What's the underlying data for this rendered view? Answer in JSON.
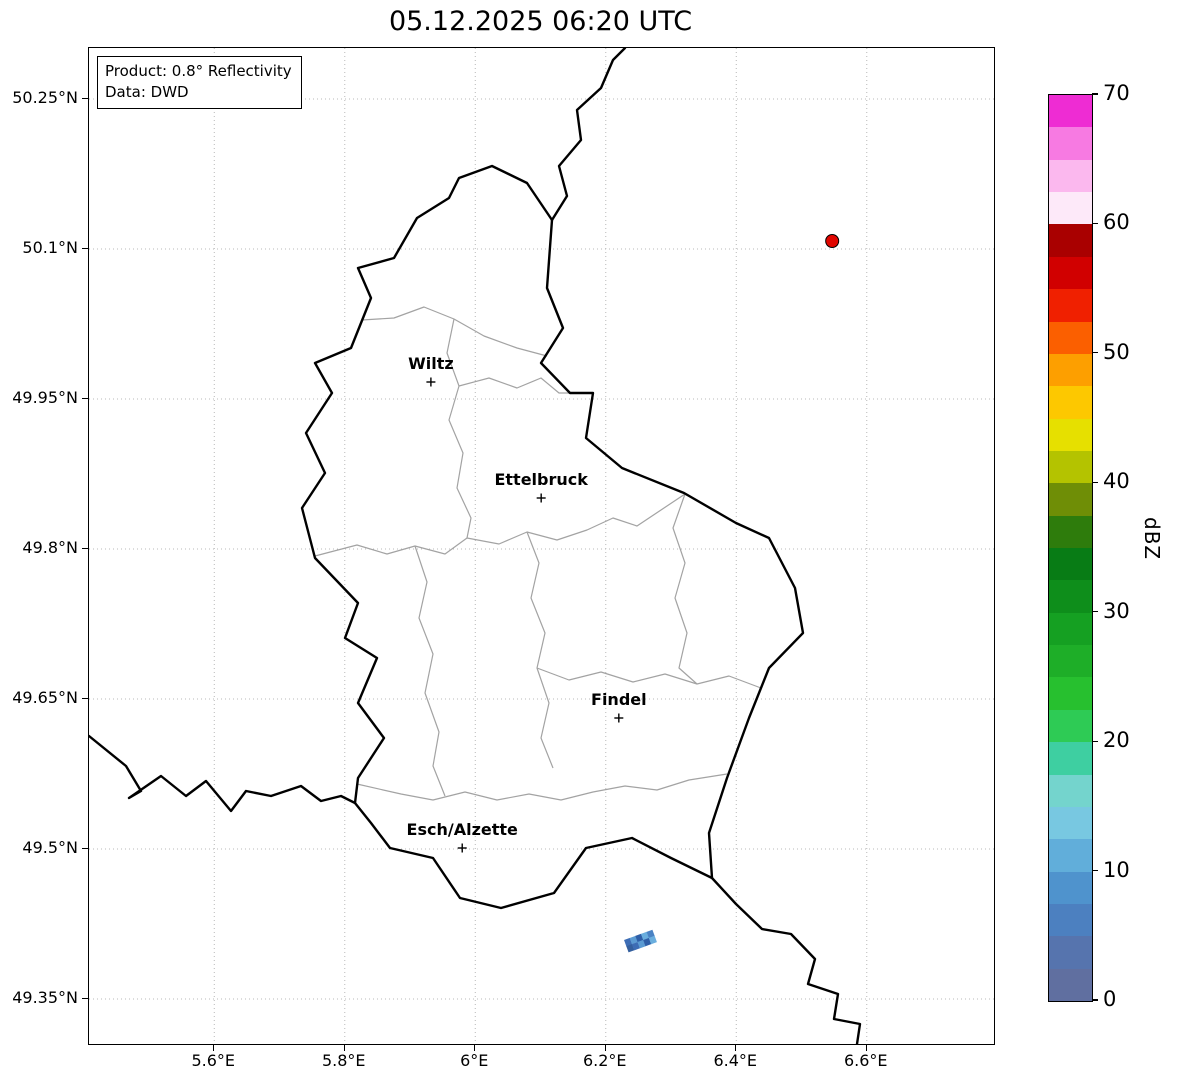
{
  "title": "05.12.2025 06:20 UTC",
  "info_box": {
    "product": "Product: 0.8° Reflectivity",
    "data_source": "Data: DWD"
  },
  "axes": {
    "lon_min": 5.408,
    "lon_max": 6.795,
    "lat_min": 49.305,
    "lat_max": 50.301,
    "x_ticks": [
      {
        "lon": 5.6,
        "label": "5.6°E"
      },
      {
        "lon": 5.8,
        "label": "5.8°E"
      },
      {
        "lon": 6.0,
        "label": "6°E"
      },
      {
        "lon": 6.2,
        "label": "6.2°E"
      },
      {
        "lon": 6.4,
        "label": "6.4°E"
      },
      {
        "lon": 6.6,
        "label": "6.6°E"
      }
    ],
    "y_ticks": [
      {
        "lat": 50.25,
        "label": "50.25°N"
      },
      {
        "lat": 50.1,
        "label": "50.1°N"
      },
      {
        "lat": 49.95,
        "label": "49.95°N"
      },
      {
        "lat": 49.8,
        "label": "49.8°N"
      },
      {
        "lat": 49.65,
        "label": "49.65°N"
      },
      {
        "lat": 49.5,
        "label": "49.5°N"
      },
      {
        "lat": 49.35,
        "label": "49.35°N"
      }
    ]
  },
  "cities": [
    {
      "name": "Wiltz",
      "lon": 5.932,
      "lat": 49.967
    },
    {
      "name": "Ettelbruck",
      "lon": 6.101,
      "lat": 49.851
    },
    {
      "name": "Findel",
      "lon": 6.22,
      "lat": 49.631
    },
    {
      "name": "Esch/Alzette",
      "lon": 5.98,
      "lat": 49.501
    }
  ],
  "radar_site": {
    "lon": 6.547,
    "lat": 50.108,
    "color": "#e10600"
  },
  "echo": {
    "lon": 6.253,
    "lat": 49.408,
    "rotation_deg": -20,
    "colors": [
      "#3d6db5",
      "#5b9bd3",
      "#2f5fa8",
      "#6aaede",
      "#4a82c4",
      "#345f9e"
    ]
  },
  "colorbar": {
    "label": "dBZ",
    "min": 0,
    "max": 70,
    "ticks": [
      0,
      10,
      20,
      30,
      40,
      50,
      60,
      70
    ],
    "colors_bottom_to_top": [
      "#606fa0",
      "#5674ae",
      "#4c80c0",
      "#4f93cd",
      "#61aeda",
      "#78c8e1",
      "#74d4cd",
      "#3ecfa1",
      "#2ecb55",
      "#27c02f",
      "#1eae28",
      "#15a022",
      "#0e8e1b",
      "#087c15",
      "#2e7c0c",
      "#6f8e06",
      "#b4c300",
      "#e6e000",
      "#fdc800",
      "#fd9f00",
      "#fb5f00",
      "#f02000",
      "#d10000",
      "#a90000",
      "#fde9f9",
      "#fbb8ee",
      "#f77ae2",
      "#ee2cd3"
    ]
  },
  "chart_data": {
    "type": "map",
    "title": "05.12.2025 06:20 UTC",
    "product": "0.8° Reflectivity",
    "source": "DWD",
    "extent": {
      "lon": [
        5.41,
        6.79
      ],
      "lat": [
        49.31,
        50.3
      ]
    },
    "colorbar": {
      "label": "dBZ",
      "range": [
        0,
        70
      ],
      "ticks": [
        0,
        10,
        20,
        30,
        40,
        50,
        60,
        70
      ]
    },
    "radar_site": {
      "lon": 6.547,
      "lat": 50.108
    },
    "echo_location": {
      "lon": 6.253,
      "lat": 49.408
    }
  }
}
